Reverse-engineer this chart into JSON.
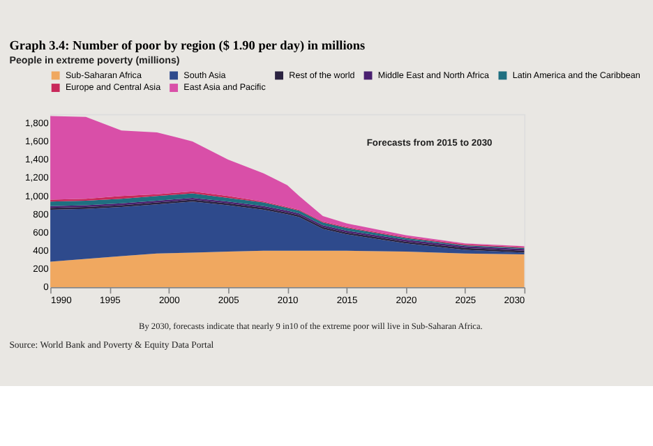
{
  "chart_data": {
    "type": "area",
    "stacked": true,
    "title": "Graph 3.4: Number of poor by region ($ 1.90 per day) in millions",
    "subtitle": "People in extreme poverty (millions)",
    "x": [
      1990,
      1993,
      1996,
      1999,
      2002,
      2005,
      2008,
      2010,
      2011,
      2013,
      2015,
      2020,
      2025,
      2030
    ],
    "series": [
      {
        "name": "Sub-Saharan Africa",
        "color": "#f0a860",
        "values": [
          280,
          310,
          340,
          370,
          380,
          390,
          400,
          400,
          400,
          400,
          400,
          390,
          370,
          360
        ]
      },
      {
        "name": "South Asia",
        "color": "#2e4a8c",
        "values": [
          570,
          550,
          540,
          540,
          560,
          510,
          450,
          400,
          370,
          240,
          180,
          90,
          40,
          20
        ]
      },
      {
        "name": "Rest of the world",
        "color": "#2a2240",
        "values": [
          20,
          20,
          20,
          20,
          20,
          20,
          20,
          20,
          20,
          20,
          20,
          20,
          20,
          20
        ]
      },
      {
        "name": "Middle East and North Africa",
        "color": "#4a2070",
        "values": [
          20,
          20,
          20,
          20,
          20,
          20,
          20,
          20,
          20,
          20,
          20,
          20,
          20,
          20
        ]
      },
      {
        "name": "Latin America and the Caribbean",
        "color": "#1f6f80",
        "values": [
          50,
          50,
          50,
          50,
          50,
          40,
          40,
          30,
          30,
          30,
          30,
          20,
          10,
          10
        ]
      },
      {
        "name": "Europe and Central Asia",
        "color": "#c8285a",
        "values": [
          20,
          20,
          30,
          20,
          20,
          20,
          10,
          10,
          10,
          10,
          10,
          10,
          10,
          10
        ]
      },
      {
        "name": "East Asia and Pacific",
        "color": "#d94fa8",
        "values": [
          920,
          900,
          720,
          680,
          550,
          400,
          310,
          240,
          150,
          60,
          40,
          20,
          10,
          10
        ]
      }
    ],
    "xlim": [
      1990,
      2030
    ],
    "xticks": [
      1990,
      1995,
      2000,
      2005,
      2010,
      2015,
      2020,
      2025,
      2030
    ],
    "ylim": [
      0,
      1900
    ],
    "yticks": [
      0,
      200,
      400,
      600,
      800,
      {
        "value": 1000,
        "label": "1,000"
      },
      {
        "value": 1200,
        "label": "1,200"
      },
      {
        "value": 1400,
        "label": "1,400"
      },
      {
        "value": 1600,
        "label": "1,600"
      },
      {
        "value": 1800,
        "label": "1,800"
      }
    ],
    "grid": false,
    "legend": "top",
    "annotations": [
      "Forecasts from 2015 to 2030",
      "By 2030, forecasts indicate that nearly 9 in10 of the extreme poor will live in Sub-Saharan Africa.",
      "Source: World Bank and Poverty & Equity Data Portal"
    ]
  }
}
